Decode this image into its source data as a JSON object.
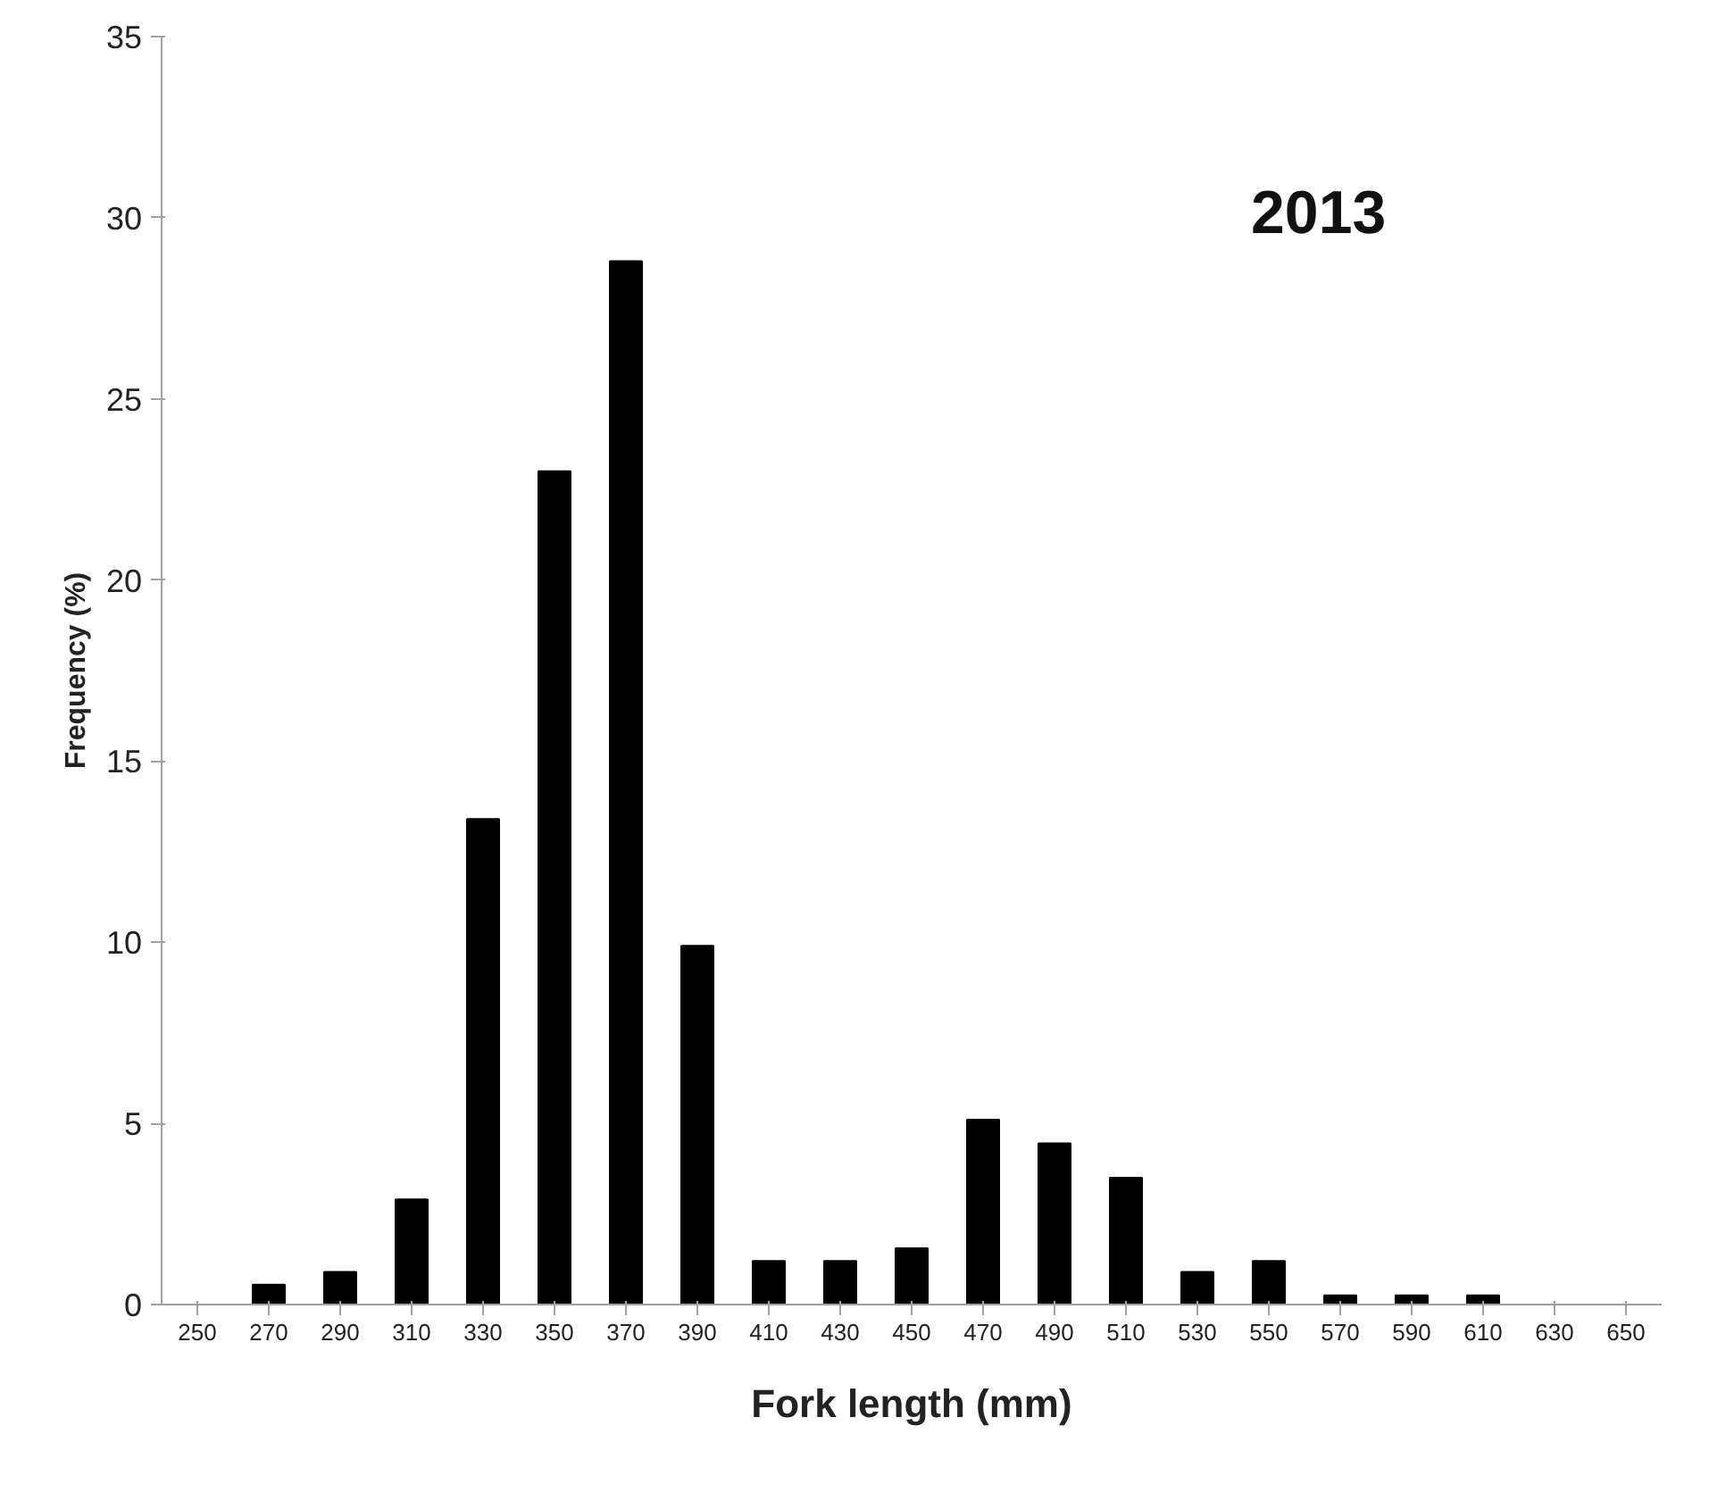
{
  "chart_data": {
    "type": "bar",
    "xlabel": "Fork length (mm)",
    "ylabel": "Frequency (%)",
    "annotations": [
      "2013"
    ],
    "categories": [
      "250",
      "270",
      "290",
      "310",
      "330",
      "350",
      "370",
      "390",
      "410",
      "430",
      "450",
      "470",
      "490",
      "510",
      "530",
      "550",
      "570",
      "590",
      "610",
      "630",
      "650"
    ],
    "values": [
      0,
      0.55,
      0.9,
      2.9,
      13.4,
      23.0,
      28.8,
      9.9,
      1.2,
      1.2,
      1.55,
      5.1,
      4.45,
      3.5,
      0.9,
      1.2,
      0.25,
      0.25,
      0.25,
      0,
      0
    ],
    "color": "#000000",
    "ylim": [
      0,
      35
    ],
    "yticks": [
      0,
      5,
      10,
      15,
      20,
      25,
      30,
      35
    ],
    "grid": false
  }
}
